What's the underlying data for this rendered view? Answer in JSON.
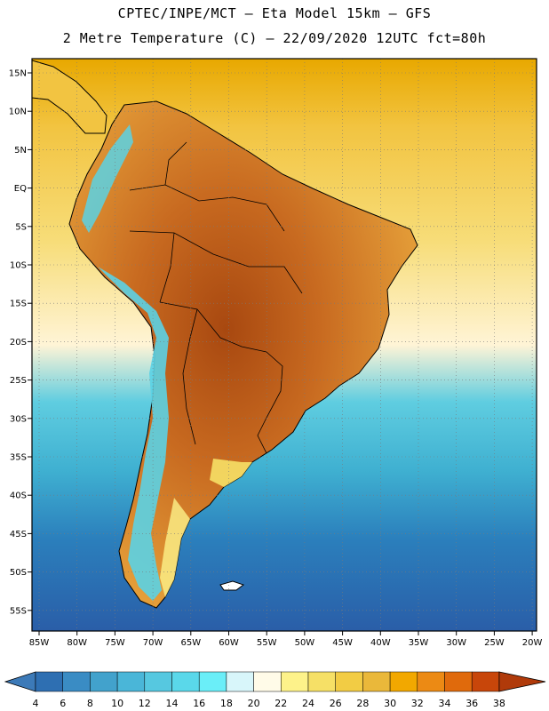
{
  "header": {
    "line1": "CPTEC/INPE/MCT –  Eta Model 15km – GFS",
    "line2": "2 Metre Temperature (C) – 22/09/2020 12UTC fct=80h"
  },
  "map": {
    "lat_labels": [
      "15N",
      "10N",
      "5N",
      "EQ",
      "5S",
      "10S",
      "15S",
      "20S",
      "25S",
      "30S",
      "35S",
      "40S",
      "45S",
      "50S",
      "55S"
    ],
    "lon_labels": [
      "85W",
      "80W",
      "75W",
      "70W",
      "65W",
      "60W",
      "55W",
      "50W",
      "45W",
      "40W",
      "35W",
      "30W",
      "25W",
      "20W"
    ],
    "ocean_gradient": [
      "#e8a800",
      "#f2c441",
      "#f7dd79",
      "#fff4d6",
      "#5fcde0",
      "#3fb0d1",
      "#2b7fbc",
      "#2a5ea8"
    ],
    "land_colors": {
      "warm": "#e6a13a",
      "hot": "#c86a20",
      "hottest": "#a84810",
      "andes": "#5bd2e4"
    }
  },
  "colorbar": {
    "labels": [
      "4",
      "6",
      "8",
      "10",
      "12",
      "14",
      "16",
      "18",
      "20",
      "22",
      "24",
      "26",
      "28",
      "30",
      "32",
      "34",
      "36",
      "38"
    ],
    "colors": [
      "#3c7ab8",
      "#2e6fb2",
      "#3a8cc4",
      "#42a2cc",
      "#4ab6d8",
      "#56c8e0",
      "#5ad8ea",
      "#6aeef8",
      "#d8f6fa",
      "#fffbe8",
      "#fdf28a",
      "#f6e066",
      "#f2cc44",
      "#eab83a",
      "#f2a800",
      "#ec8a14",
      "#e06a0c",
      "#c8460a",
      "#b03a0a"
    ]
  }
}
